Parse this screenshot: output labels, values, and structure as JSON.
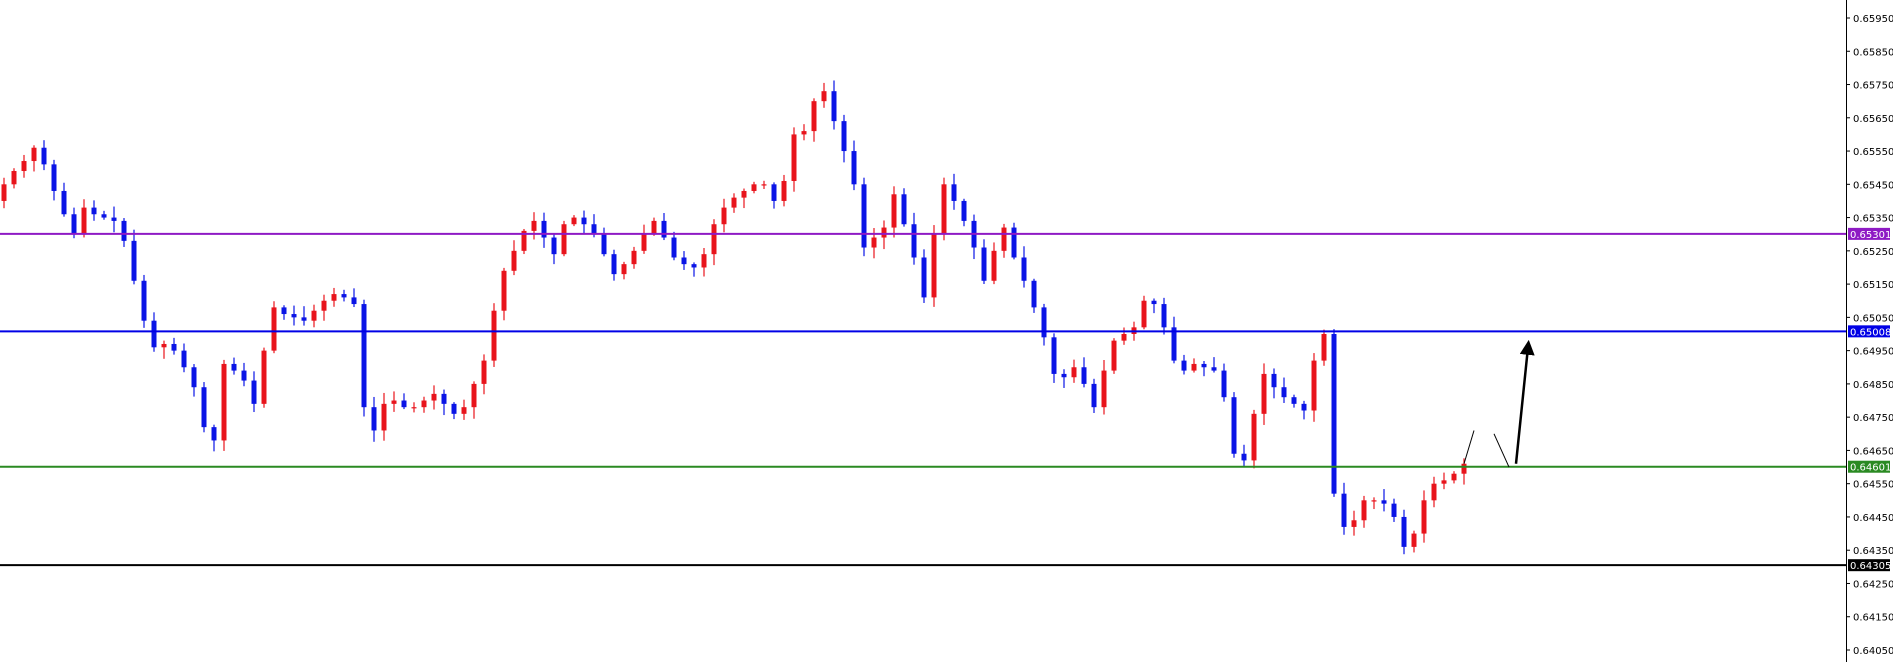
{
  "chart_data": {
    "type": "candlestick",
    "title": "",
    "ylim": [
      0.6402,
      0.6598
    ],
    "y_ticks": [
      "0.65950",
      "0.65850",
      "0.65750",
      "0.65650",
      "0.65550",
      "0.65450",
      "0.65350",
      "0.65250",
      "0.65150",
      "0.65050",
      "0.64950",
      "0.64850",
      "0.64750",
      "0.64650",
      "0.64550",
      "0.64450",
      "0.64350",
      "0.64250",
      "0.64150",
      "0.64050"
    ],
    "first_open": 0.654,
    "closes": [
      0.6545,
      0.6549,
      0.6552,
      0.6556,
      0.6551,
      0.6543,
      0.6536,
      0.653,
      0.6538,
      0.6536,
      0.6535,
      0.6534,
      0.6528,
      0.6516,
      0.6504,
      0.6496,
      0.6497,
      0.6495,
      0.649,
      0.6484,
      0.6472,
      0.6468,
      0.6491,
      0.6489,
      0.6486,
      0.6479,
      0.6495,
      0.6508,
      0.6506,
      0.6505,
      0.6504,
      0.6507,
      0.651,
      0.6512,
      0.6511,
      0.6509,
      0.6478,
      0.6471,
      0.6479,
      0.648,
      0.6478,
      0.6478,
      0.648,
      0.6482,
      0.6479,
      0.6476,
      0.6478,
      0.6485,
      0.6492,
      0.6507,
      0.6519,
      0.6525,
      0.6531,
      0.6534,
      0.6529,
      0.6524,
      0.6533,
      0.6535,
      0.6533,
      0.653,
      0.6524,
      0.6518,
      0.6521,
      0.6525,
      0.653,
      0.6534,
      0.6529,
      0.6523,
      0.6521,
      0.652,
      0.6524,
      0.6533,
      0.6538,
      0.6541,
      0.6543,
      0.6545,
      0.6545,
      0.654,
      0.6546,
      0.656,
      0.6561,
      0.657,
      0.6573,
      0.6564,
      0.6555,
      0.6545,
      0.6526,
      0.6529,
      0.6532,
      0.6542,
      0.6533,
      0.6523,
      0.6511,
      0.653,
      0.6545,
      0.654,
      0.6534,
      0.6526,
      0.6516,
      0.6525,
      0.6532,
      0.6523,
      0.6516,
      0.6508,
      0.6499,
      0.6488,
      0.6487,
      0.649,
      0.6485,
      0.6478,
      0.6489,
      0.6498,
      0.65,
      0.6502,
      0.651,
      0.6509,
      0.6502,
      0.6492,
      0.6489,
      0.6491,
      0.649,
      0.6489,
      0.6481,
      0.6464,
      0.6462,
      0.6476,
      0.6488,
      0.6484,
      0.6481,
      0.6479,
      0.6477,
      0.6492,
      0.65,
      0.6452,
      0.6442,
      0.6444,
      0.645,
      0.645,
      0.6449,
      0.6445,
      0.6436,
      0.644,
      0.645,
      0.6455,
      0.6456,
      0.6458,
      0.6461
    ],
    "bull_color": "#e8141c",
    "bear_color": "#0a14e6",
    "grid": false,
    "horizontal_levels": [
      {
        "label": "0.65301",
        "value": 0.65301,
        "color": "#8e1ac4"
      },
      {
        "label": "0.65008",
        "value": 0.65008,
        "color": "#0000e6"
      },
      {
        "label": "0.64601",
        "value": 0.64601,
        "color": "#2a8a22"
      },
      {
        "label": "0.64305",
        "value": 0.64305,
        "color": "#000000"
      }
    ],
    "annotations": [
      {
        "type": "line",
        "from": [
          146,
          0.6461
        ],
        "to": [
          147,
          0.6471
        ]
      },
      {
        "type": "line",
        "from": [
          149,
          0.647
        ],
        "to": [
          150.5,
          0.646
        ]
      },
      {
        "type": "arrow",
        "from": [
          151.2,
          0.6461
        ],
        "to": [
          152.4,
          0.6496
        ]
      }
    ]
  }
}
